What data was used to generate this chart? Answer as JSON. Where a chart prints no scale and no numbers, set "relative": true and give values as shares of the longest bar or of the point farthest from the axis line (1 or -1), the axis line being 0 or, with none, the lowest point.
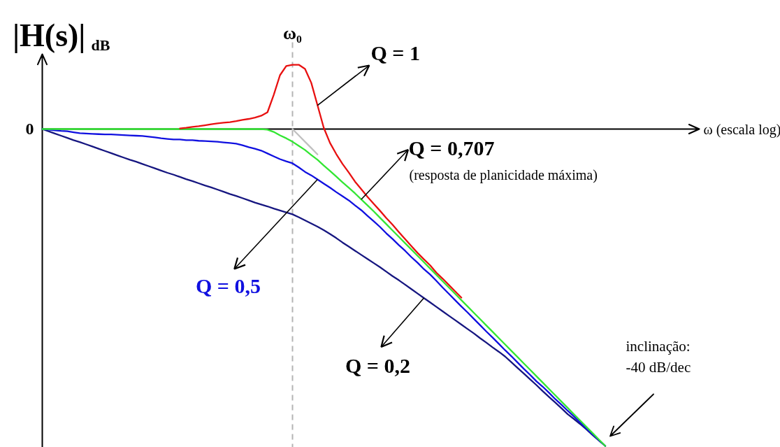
{
  "chart_data": {
    "type": "line",
    "relative": true,
    "ylabel": "|H(s)|$_{dB}$",
    "categories": [
      null,
      null,
      null,
      null,
      null,
      null,
      null,
      null,
      null,
      null,
      null,
      null,
      null,
      null,
      null,
      null,
      null,
      null,
      null,
      null,
      null,
      null,
      null,
      null,
      null,
      null,
      null,
      null,
      null,
      null,
      null,
      null,
      null,
      null,
      null,
      null,
      null,
      null,
      null,
      null,
      null,
      null,
      null,
      null,
      null,
      null,
      null,
      null,
      null,
      null,
      null,
      null,
      null,
      null,
      null,
      null,
      null,
      null,
      null,
      null,
      null,
      null,
      null,
      null,
      null,
      null,
      null,
      null,
      null,
      null,
      null,
      null,
      null,
      null,
      null,
      null,
      null,
      null,
      null,
      null,
      null,
      null,
      null,
      null,
      null,
      null,
      null,
      null,
      null,
      null,
      null
    ],
    "series": [
      {
        "name": "Q = 1",
        "color": "#e81010",
        "values": [
          null,
          null,
          null,
          null,
          null,
          null,
          null,
          null,
          null,
          null,
          null,
          null,
          null,
          null,
          null,
          null,
          null,
          null,
          null,
          null,
          null,
          null,
          0.002,
          0.004,
          0.007,
          0.009,
          0.012,
          0.015,
          0.018,
          0.02,
          0.022,
          0.025,
          0.029,
          0.032,
          0.036,
          0.042,
          0.053,
          0.108,
          0.17,
          0.199,
          0.203,
          0.203,
          0.19,
          0.146,
          0.075,
          0.004,
          -0.044,
          -0.079,
          -0.11,
          -0.137,
          -0.166,
          -0.19,
          -0.214,
          -0.236,
          -0.258,
          -0.281,
          -0.302,
          -0.325,
          -0.347,
          -0.369,
          -0.391,
          -0.411,
          -0.43,
          -0.453,
          -0.472,
          -0.492,
          -0.512,
          -0.532,
          null,
          null,
          null,
          null,
          null,
          null,
          null,
          null,
          null,
          null,
          null,
          null,
          null,
          null,
          null,
          null,
          null,
          null,
          null,
          null,
          null,
          null,
          null
        ]
      },
      {
        "name": "Q = 0,707",
        "color": "#33e633",
        "values": [
          0,
          0,
          0,
          0,
          0,
          0,
          0,
          0,
          0,
          0,
          0,
          0,
          0,
          0,
          0,
          0,
          0,
          0,
          0,
          0,
          0,
          0,
          0,
          0,
          0,
          0,
          0,
          0,
          0,
          0,
          0,
          0,
          0,
          0,
          0,
          0,
          -0.002,
          -0.009,
          -0.02,
          -0.029,
          -0.04,
          -0.053,
          -0.066,
          -0.082,
          -0.097,
          -0.115,
          -0.132,
          -0.15,
          -0.168,
          -0.185,
          -0.203,
          -0.222,
          -0.241,
          -0.26,
          -0.28,
          -0.3,
          -0.32,
          -0.34,
          -0.36,
          -0.38,
          -0.4,
          -0.42,
          -0.44,
          -0.46,
          -0.48,
          -0.5,
          -0.52,
          -0.54,
          -0.56,
          -0.58,
          -0.6,
          -0.62,
          -0.64,
          -0.66,
          -0.68,
          -0.7,
          -0.72,
          -0.74,
          -0.76,
          -0.78,
          -0.8,
          -0.82,
          -0.84,
          -0.86,
          -0.88,
          -0.9,
          -0.92,
          -0.94,
          -0.96,
          -0.98,
          -1.0
        ]
      },
      {
        "name": "Q = 0,5",
        "color": "#1010e0",
        "values": [
          0,
          -0.002,
          -0.004,
          -0.006,
          -0.007,
          -0.01,
          -0.013,
          -0.014,
          -0.015,
          -0.016,
          -0.017,
          -0.017,
          -0.018,
          -0.019,
          -0.02,
          -0.021,
          -0.022,
          -0.024,
          -0.026,
          -0.029,
          -0.031,
          -0.033,
          -0.033,
          -0.035,
          -0.035,
          -0.037,
          -0.038,
          -0.039,
          -0.04,
          -0.042,
          -0.044,
          -0.046,
          -0.051,
          -0.057,
          -0.062,
          -0.068,
          -0.077,
          -0.086,
          -0.095,
          -0.102,
          -0.108,
          -0.121,
          -0.135,
          -0.146,
          -0.159,
          -0.172,
          -0.185,
          -0.199,
          -0.212,
          -0.225,
          -0.241,
          -0.256,
          -0.274,
          -0.291,
          -0.309,
          -0.329,
          -0.347,
          -0.366,
          -0.384,
          -0.404,
          -0.422,
          -0.442,
          -0.459,
          -0.479,
          -0.5,
          -0.52,
          -0.54,
          -0.56,
          -0.579,
          -0.599,
          -0.619,
          -0.639,
          -0.658,
          -0.678,
          -0.698,
          -0.717,
          -0.737,
          -0.757,
          -0.776,
          -0.796,
          -0.813,
          -0.832,
          -0.852,
          -0.87,
          -0.889,
          -0.907,
          -0.926,
          -0.945,
          -0.964,
          -0.982,
          -1.0
        ]
      },
      {
        "name": "Q = 0,2",
        "color": "#161680",
        "values": [
          0,
          -0.007,
          -0.014,
          -0.021,
          -0.028,
          -0.035,
          -0.041,
          -0.048,
          -0.055,
          -0.062,
          -0.069,
          -0.076,
          -0.083,
          -0.09,
          -0.097,
          -0.103,
          -0.11,
          -0.117,
          -0.124,
          -0.131,
          -0.138,
          -0.144,
          -0.151,
          -0.158,
          -0.164,
          -0.171,
          -0.178,
          -0.184,
          -0.191,
          -0.198,
          -0.205,
          -0.211,
          -0.218,
          -0.225,
          -0.232,
          -0.238,
          -0.244,
          -0.251,
          -0.257,
          -0.263,
          -0.269,
          -0.278,
          -0.288,
          -0.298,
          -0.308,
          -0.319,
          -0.331,
          -0.344,
          -0.358,
          -0.371,
          -0.384,
          -0.397,
          -0.41,
          -0.423,
          -0.436,
          -0.45,
          -0.464,
          -0.477,
          -0.491,
          -0.505,
          -0.519,
          -0.533,
          -0.547,
          -0.561,
          -0.575,
          -0.589,
          -0.603,
          -0.617,
          -0.631,
          -0.645,
          -0.66,
          -0.674,
          -0.689,
          -0.703,
          -0.718,
          -0.736,
          -0.754,
          -0.772,
          -0.79,
          -0.808,
          -0.827,
          -0.845,
          -0.863,
          -0.881,
          -0.9,
          -0.915,
          -0.931,
          -0.948,
          -0.966,
          -0.983,
          -1.0
        ]
      },
      {
        "color": "#c0c0c0",
        "values": [
          null,
          null,
          null,
          null,
          null,
          null,
          null,
          null,
          null,
          null,
          null,
          null,
          null,
          null,
          null,
          null,
          null,
          null,
          null,
          null,
          null,
          null,
          null,
          null,
          null,
          null,
          null,
          null,
          null,
          null,
          null,
          null,
          null,
          null,
          null,
          null,
          null,
          null,
          null,
          null,
          0,
          -0.02,
          -0.04,
          -0.06,
          -0.08,
          null,
          null,
          null,
          null,
          null,
          null,
          null,
          null,
          null,
          null,
          null,
          null,
          null,
          null,
          null,
          null,
          null,
          null,
          null,
          null,
          null,
          null,
          null,
          null,
          null,
          null,
          null,
          null,
          null,
          null,
          null,
          null,
          null,
          null,
          null,
          null,
          null,
          null,
          null,
          null,
          null,
          null,
          null,
          null,
          null,
          null
        ]
      }
    ],
    "annotations": [
      "ω₀",
      "0",
      "ω (escala log)",
      "(resposta de planicidade máxima)",
      "inclinação:\n-40 dB/dec"
    ]
  }
}
